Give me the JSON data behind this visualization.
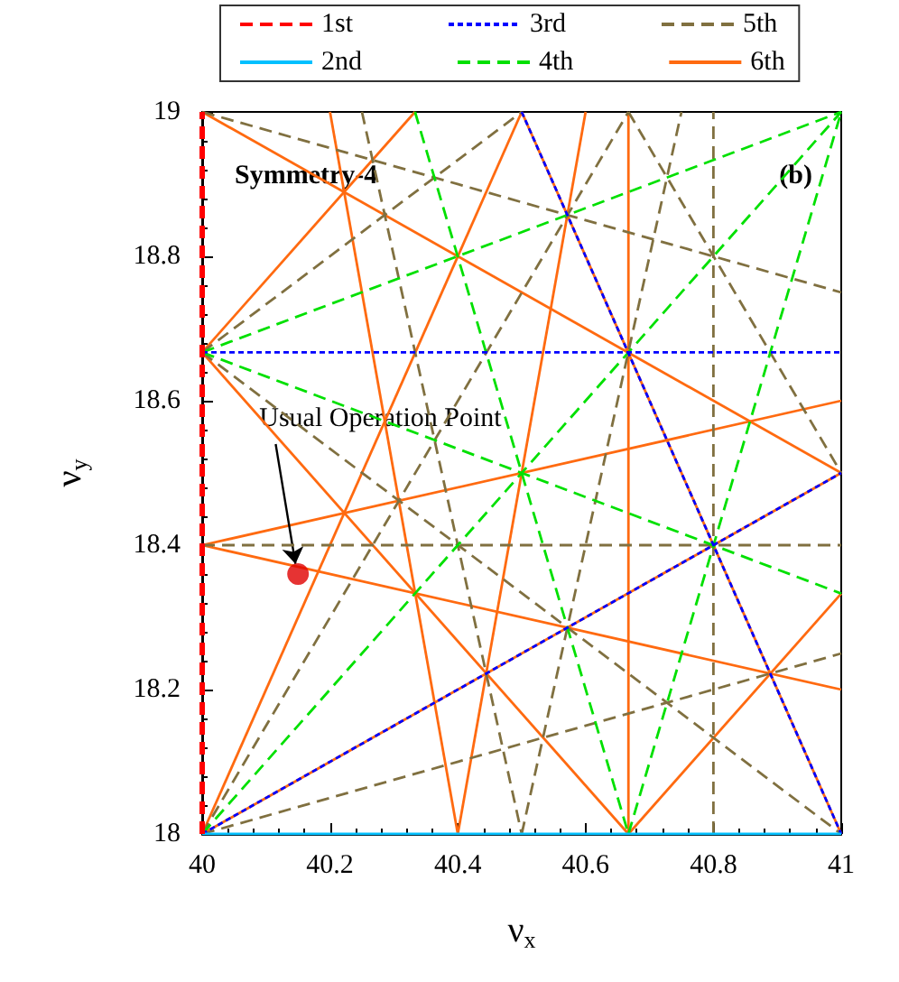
{
  "chart_data": {
    "type": "line",
    "xlabel": "ν$_{x}$",
    "ylabel": "ν$_{y}$",
    "xlim": [
      40,
      41
    ],
    "ylim": [
      18,
      19
    ],
    "xticks": [
      40,
      40.2,
      40.4,
      40.6,
      40.8,
      41
    ],
    "yticks": [
      18,
      18.2,
      18.4,
      18.6,
      18.8,
      19
    ],
    "legend": "top",
    "marker": "none",
    "annotations": [
      "Symmetry-4",
      "(b)",
      {
        "text": "Usual Operation Point",
        "x": 40.15,
        "y": 18.36
      }
    ],
    "series": [
      {
        "name": "1st",
        "color": "#ff0000",
        "line_style": "dashed",
        "x": [
          40,
          40
        ],
        "values": [
          18,
          19
        ]
      },
      {
        "name": "2nd",
        "color": "#00c0ff",
        "line_style": "solid",
        "x": [
          40,
          41
        ],
        "values": [
          18,
          18
        ]
      },
      {
        "name": "3rd",
        "color": "#0000ff",
        "line_style": "dotted",
        "x": [
          40,
          41
        ],
        "values": [
          18.667,
          18.667
        ]
      },
      {
        "color": "#0000ff",
        "line_style": "dotted",
        "x": [
          40,
          41
        ],
        "values": [
          18,
          18.5
        ]
      },
      {
        "color": "#0000ff",
        "line_style": "dotted",
        "x": [
          40.5,
          41
        ],
        "values": [
          19,
          18
        ]
      },
      {
        "name": "4th",
        "color": "#00e000",
        "line_style": "dashed",
        "x": [
          40.333,
          40.667
        ],
        "values": [
          19,
          18
        ]
      },
      {
        "color": "#00e000",
        "line_style": "dashed",
        "x": [
          40.667,
          41
        ],
        "values": [
          18,
          19
        ]
      },
      {
        "color": "#00e000",
        "line_style": "dashed",
        "x": [
          40,
          41
        ],
        "values": [
          18.667,
          18.333
        ]
      },
      {
        "color": "#00e000",
        "line_style": "dashed",
        "x": [
          40,
          41
        ],
        "values": [
          18.667,
          19
        ]
      },
      {
        "color": "#00e000",
        "line_style": "dashed",
        "x": [
          40,
          41
        ],
        "values": [
          18,
          19
        ]
      },
      {
        "name": "5th",
        "color": "#807040",
        "line_style": "dashed",
        "x": [
          40.8,
          40.8
        ],
        "values": [
          18,
          19
        ]
      },
      {
        "color": "#807040",
        "line_style": "dashed",
        "x": [
          40,
          41
        ],
        "values": [
          18.4,
          18.4
        ]
      },
      {
        "color": "#807040",
        "line_style": "dashed",
        "x": [
          40.25,
          40.5
        ],
        "values": [
          19,
          18
        ]
      },
      {
        "color": "#807040",
        "line_style": "dashed",
        "x": [
          40.5,
          40.75
        ],
        "values": [
          18,
          19
        ]
      },
      {
        "color": "#807040",
        "line_style": "dashed",
        "x": [
          40.667,
          41
        ],
        "values": [
          19,
          18.5
        ]
      },
      {
        "color": "#807040",
        "line_style": "dashed",
        "x": [
          40,
          40.667
        ],
        "values": [
          18,
          19
        ]
      },
      {
        "color": "#807040",
        "line_style": "dashed",
        "x": [
          40,
          41
        ],
        "values": [
          18.667,
          18
        ]
      },
      {
        "color": "#807040",
        "line_style": "dashed",
        "x": [
          40,
          40.5
        ],
        "values": [
          18.667,
          19
        ]
      },
      {
        "color": "#807040",
        "line_style": "dashed",
        "x": [
          40,
          41
        ],
        "values": [
          19,
          18.75
        ]
      },
      {
        "color": "#807040",
        "line_style": "dashed",
        "x": [
          40,
          41
        ],
        "values": [
          18,
          18.25
        ]
      },
      {
        "name": "6th",
        "color": "#ff6a10",
        "line_style": "solid",
        "x": [
          40.667,
          40.667
        ],
        "values": [
          18,
          19
        ]
      },
      {
        "color": "#ff6a10",
        "line_style": "solid",
        "x": [
          40.2,
          40.4
        ],
        "values": [
          19,
          18
        ]
      },
      {
        "color": "#ff6a10",
        "line_style": "solid",
        "x": [
          40.4,
          40.6
        ],
        "values": [
          18,
          19
        ]
      },
      {
        "color": "#ff6a10",
        "line_style": "solid",
        "x": [
          40.5,
          41
        ],
        "values": [
          19,
          18
        ]
      },
      {
        "color": "#ff6a10",
        "line_style": "solid",
        "x": [
          40,
          40.5
        ],
        "values": [
          18,
          19
        ]
      },
      {
        "color": "#ff6a10",
        "line_style": "solid",
        "x": [
          40,
          40.667
        ],
        "values": [
          18.667,
          18
        ]
      },
      {
        "color": "#ff6a10",
        "line_style": "solid",
        "x": [
          40,
          40.333
        ],
        "values": [
          18.667,
          19
        ]
      },
      {
        "color": "#ff6a10",
        "line_style": "solid",
        "x": [
          40.667,
          41
        ],
        "values": [
          18,
          18.333
        ]
      },
      {
        "color": "#ff6a10",
        "line_style": "solid",
        "x": [
          40,
          41
        ],
        "values": [
          19,
          18.5
        ]
      },
      {
        "color": "#ff6a10",
        "line_style": "solid",
        "x": [
          40,
          41
        ],
        "values": [
          18,
          18.5
        ]
      },
      {
        "color": "#ff6a10",
        "line_style": "solid",
        "x": [
          40,
          41
        ],
        "values": [
          18.4,
          18.2
        ]
      },
      {
        "color": "#ff6a10",
        "line_style": "solid",
        "x": [
          40,
          41
        ],
        "values": [
          18.4,
          18.6
        ]
      },
      {
        "type": "scatter",
        "color": "#e00000",
        "marker": "circle",
        "x": [
          40.15
        ],
        "values": [
          18.36
        ]
      }
    ]
  }
}
